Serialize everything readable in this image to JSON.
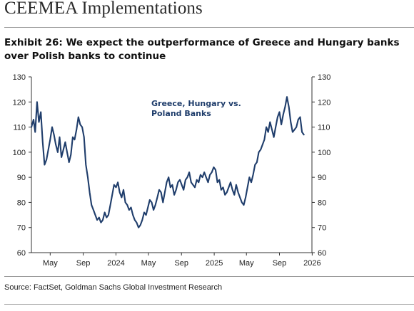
{
  "header": {
    "title": "CEEMEA Implementations"
  },
  "exhibit": {
    "title": "Exhibit 26: We expect the outperformance of Greece and Hungary banks over Polish banks to continue"
  },
  "source": {
    "text": "Source: FactSet, Goldman Sachs Global Investment Research"
  },
  "colors": {
    "series": "#1f3d6b",
    "axis": "#333333",
    "annotation": "#1f3d6b"
  },
  "chart_data": {
    "type": "line",
    "title": "",
    "xlabel": "",
    "ylabel": "",
    "ylim": [
      60,
      130
    ],
    "y_ticks": [
      60,
      70,
      80,
      90,
      100,
      110,
      120,
      130
    ],
    "y_tick_labels_left": [
      "60",
      "70",
      "80",
      "90",
      "100",
      "110",
      "120",
      "130"
    ],
    "y_tick_labels_right": [
      "60",
      "70",
      "80",
      "90",
      "100",
      "110",
      "120",
      "130"
    ],
    "x_range": [
      "2023-02-20",
      "2025-12-31"
    ],
    "x_ticks": [
      {
        "date": "2023-05-01",
        "label": "May"
      },
      {
        "date": "2023-09-01",
        "label": "Sep"
      },
      {
        "date": "2024-01-01",
        "label": "2024"
      },
      {
        "date": "2024-05-01",
        "label": "May"
      },
      {
        "date": "2024-09-01",
        "label": "Sep"
      },
      {
        "date": "2025-01-01",
        "label": "2025"
      },
      {
        "date": "2025-05-01",
        "label": "May"
      },
      {
        "date": "2025-09-01",
        "label": "Sep"
      },
      {
        "date": "2026-01-01",
        "label": "2026"
      }
    ],
    "annotation": [
      "Greece, Hungary vs.",
      "Poland Banks"
    ],
    "grid": false,
    "legend": "none",
    "series": [
      {
        "x": [
          "2023-02-20",
          "2023-02-28",
          "2023-03-06",
          "2023-03-13",
          "2023-03-20",
          "2023-03-27",
          "2023-04-03",
          "2023-04-10",
          "2023-04-17",
          "2023-04-24",
          "2023-05-01",
          "2023-05-08",
          "2023-05-15",
          "2023-05-22",
          "2023-05-29",
          "2023-06-05",
          "2023-06-12",
          "2023-06-19",
          "2023-06-26",
          "2023-07-03",
          "2023-07-10",
          "2023-07-17",
          "2023-07-24",
          "2023-07-31",
          "2023-08-07",
          "2023-08-14",
          "2023-08-21",
          "2023-08-28",
          "2023-09-04",
          "2023-09-11",
          "2023-09-18",
          "2023-09-25",
          "2023-10-02",
          "2023-10-09",
          "2023-10-16",
          "2023-10-23",
          "2023-10-30",
          "2023-11-06",
          "2023-11-13",
          "2023-11-20",
          "2023-11-27",
          "2023-12-04",
          "2023-12-11",
          "2023-12-18",
          "2023-12-25",
          "2024-01-01",
          "2024-01-08",
          "2024-01-15",
          "2024-01-22",
          "2024-01-29",
          "2024-02-05",
          "2024-02-12",
          "2024-02-19",
          "2024-02-26",
          "2024-03-04",
          "2024-03-11",
          "2024-03-18",
          "2024-03-25",
          "2024-04-01",
          "2024-04-08",
          "2024-04-15",
          "2024-04-22",
          "2024-04-29",
          "2024-05-06",
          "2024-05-13",
          "2024-05-20",
          "2024-05-27",
          "2024-06-03",
          "2024-06-10",
          "2024-06-17",
          "2024-06-24",
          "2024-07-01",
          "2024-07-08",
          "2024-07-15",
          "2024-07-22",
          "2024-07-29",
          "2024-08-05",
          "2024-08-12",
          "2024-08-19",
          "2024-08-26",
          "2024-09-02",
          "2024-09-09",
          "2024-09-16",
          "2024-09-23",
          "2024-09-30",
          "2024-10-07",
          "2024-10-14",
          "2024-10-21",
          "2024-10-28",
          "2024-11-04",
          "2024-11-11",
          "2024-11-18",
          "2024-11-25",
          "2024-12-02",
          "2024-12-09",
          "2024-12-16",
          "2024-12-23",
          "2024-12-30",
          "2025-01-06",
          "2025-01-13",
          "2025-01-20",
          "2025-01-27",
          "2025-02-03",
          "2025-02-10",
          "2025-02-17",
          "2025-02-24",
          "2025-03-03",
          "2025-03-10",
          "2025-03-17",
          "2025-03-24",
          "2025-03-31",
          "2025-04-07",
          "2025-04-14",
          "2025-04-21",
          "2025-04-28",
          "2025-05-05",
          "2025-05-12",
          "2025-05-19",
          "2025-05-26",
          "2025-06-02",
          "2025-06-09",
          "2025-06-16",
          "2025-06-23",
          "2025-06-30",
          "2025-07-07",
          "2025-07-14",
          "2025-07-21",
          "2025-07-28",
          "2025-08-04",
          "2025-08-11",
          "2025-08-18",
          "2025-08-25",
          "2025-09-01",
          "2025-09-08",
          "2025-09-15",
          "2025-09-22",
          "2025-09-29",
          "2025-10-06",
          "2025-10-13",
          "2025-10-20",
          "2025-10-27",
          "2025-11-03",
          "2025-11-10",
          "2025-11-17",
          "2025-11-24",
          "2025-12-01"
        ],
        "values": [
          110,
          113,
          108,
          120,
          112,
          116,
          104,
          95,
          97,
          101,
          105,
          110,
          107,
          103,
          100,
          106,
          98,
          101,
          104,
          100,
          96,
          99,
          106,
          105,
          109,
          114,
          111,
          110,
          106,
          95,
          90,
          84,
          79,
          77,
          75,
          73,
          74,
          72,
          73,
          76,
          74,
          75,
          79,
          83,
          87,
          86,
          88,
          84,
          82,
          85,
          80,
          79,
          77,
          78,
          75,
          73,
          72,
          70,
          71,
          73,
          76,
          75,
          78,
          81,
          80,
          77,
          79,
          82,
          85,
          84,
          80,
          84,
          88,
          90,
          86,
          87,
          83,
          85,
          88,
          89,
          87,
          85,
          89,
          90,
          92,
          88,
          87,
          86,
          89,
          88,
          91,
          90,
          92,
          90,
          88,
          91,
          92,
          94,
          93,
          88,
          89,
          85,
          86,
          83,
          84,
          86,
          88,
          85,
          83,
          87,
          84,
          82,
          80,
          79,
          82,
          86,
          90,
          88,
          91,
          95,
          96,
          100,
          101,
          103,
          105,
          110,
          108,
          112,
          109,
          106,
          110,
          114,
          116,
          111,
          115,
          118,
          122,
          118,
          112,
          108,
          109,
          110,
          113,
          114,
          108,
          107
        ]
      }
    ]
  }
}
